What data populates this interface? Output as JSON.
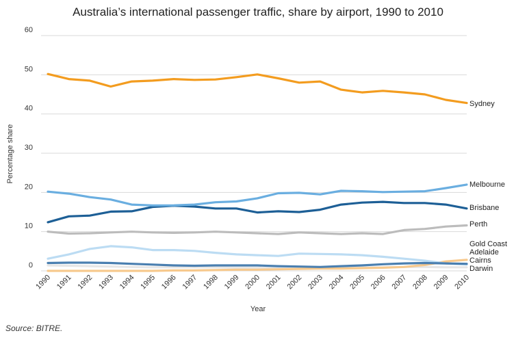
{
  "chart_data": {
    "type": "line",
    "title": "Australia’s international passenger traffic, share by airport, 1990 to 2010",
    "xlabel": "Year",
    "ylabel": "Percentage share",
    "ylim": [
      0,
      60
    ],
    "yticks": [
      "0",
      "10",
      "20",
      "30",
      "40",
      "50",
      "60"
    ],
    "grid": true,
    "legend": "inline labels at right end of lines",
    "source": "Source: BITRE.",
    "x": [
      "1990",
      "1991",
      "1992",
      "1993",
      "1994",
      "1995",
      "1996",
      "1997",
      "1998",
      "1999",
      "2000",
      "2001",
      "2002",
      "2003",
      "2004",
      "2005",
      "2006",
      "2007",
      "2008",
      "2009",
      "2010"
    ],
    "series": [
      {
        "name": "Sydney",
        "color": "#f39c1f",
        "values": [
          50.2,
          48.9,
          48.5,
          47.0,
          48.3,
          48.5,
          48.9,
          48.7,
          48.8,
          49.4,
          50.1,
          49.1,
          48.0,
          48.3,
          46.2,
          45.5,
          45.9,
          45.5,
          45.0,
          43.6,
          42.8
        ]
      },
      {
        "name": "Melbourne",
        "color": "#6aaee0",
        "values": [
          20.2,
          19.7,
          18.8,
          18.2,
          16.9,
          16.7,
          16.7,
          16.9,
          17.5,
          17.7,
          18.5,
          19.8,
          19.9,
          19.5,
          20.4,
          20.3,
          20.1,
          20.2,
          20.3,
          21.1,
          22.0
        ]
      },
      {
        "name": "Brisbane",
        "color": "#1d5f96",
        "values": [
          12.4,
          13.9,
          14.1,
          15.1,
          15.2,
          16.3,
          16.6,
          16.4,
          15.9,
          15.9,
          14.9,
          15.2,
          15.0,
          15.6,
          16.9,
          17.4,
          17.6,
          17.3,
          17.3,
          16.9,
          15.9
        ]
      },
      {
        "name": "Perth",
        "color": "#bcbcbc",
        "values": [
          10.0,
          9.5,
          9.6,
          9.8,
          10.0,
          9.8,
          9.7,
          9.8,
          10.0,
          9.8,
          9.6,
          9.4,
          9.8,
          9.6,
          9.4,
          9.6,
          9.4,
          10.4,
          10.7,
          11.3,
          11.6
        ]
      },
      {
        "name": "Gold Coast",
        "color": "#e6e6e6",
        "values": [
          1.4,
          1.3,
          1.2,
          1.1,
          1.0,
          0.9,
          0.9,
          0.9,
          0.9,
          0.8,
          0.8,
          0.8,
          0.7,
          0.7,
          0.8,
          0.8,
          0.9,
          1.0,
          1.0,
          0.9,
          0.9
        ]
      },
      {
        "name": "Adelaide",
        "color": "#bcdcf3",
        "values": [
          3.1,
          4.2,
          5.6,
          6.3,
          6.0,
          5.3,
          5.3,
          5.1,
          4.6,
          4.2,
          4.0,
          3.8,
          4.4,
          4.3,
          4.2,
          4.0,
          3.6,
          3.1,
          2.6,
          1.9,
          1.6
        ]
      },
      {
        "name": "Cairns",
        "color": "#f7c98d",
        "values": [
          0.0,
          0.0,
          0.0,
          0.0,
          0.0,
          0.0,
          0.1,
          0.1,
          0.2,
          0.3,
          0.3,
          0.4,
          0.5,
          0.6,
          0.6,
          0.7,
          0.8,
          1.0,
          1.5,
          2.4,
          2.8
        ]
      },
      {
        "name": "Darwin",
        "color": "#4a7fb0",
        "values": [
          2.0,
          2.1,
          2.1,
          2.0,
          1.8,
          1.6,
          1.4,
          1.3,
          1.4,
          1.4,
          1.4,
          1.2,
          1.1,
          1.0,
          1.2,
          1.4,
          1.7,
          1.9,
          2.0,
          1.9,
          1.8
        ]
      }
    ]
  }
}
